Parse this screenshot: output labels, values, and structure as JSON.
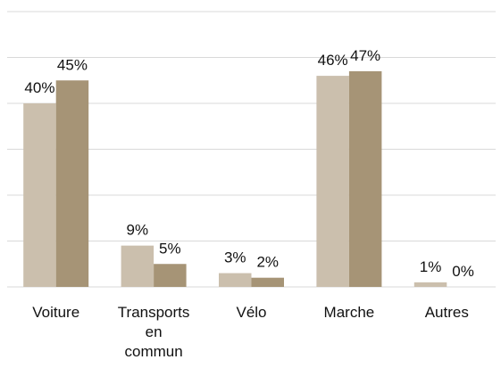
{
  "chart_data": {
    "type": "bar",
    "categories": [
      "Voiture",
      "Transports en commun",
      "Vélo",
      "Marche",
      "Autres"
    ],
    "series": [
      {
        "color": "#cbbfad",
        "values": [
          40,
          9,
          3,
          46,
          1
        ],
        "value_labels": [
          "40%",
          "9%",
          "3%",
          "46%",
          "1%"
        ]
      },
      {
        "color": "#a69476",
        "values": [
          45,
          5,
          2,
          47,
          0
        ],
        "value_labels": [
          "45%",
          "5%",
          "2%",
          "47%",
          "0%"
        ]
      }
    ],
    "ylim": [
      0,
      60
    ],
    "yticks": [
      0,
      10,
      20,
      30,
      40,
      50,
      60
    ],
    "grid": true
  }
}
